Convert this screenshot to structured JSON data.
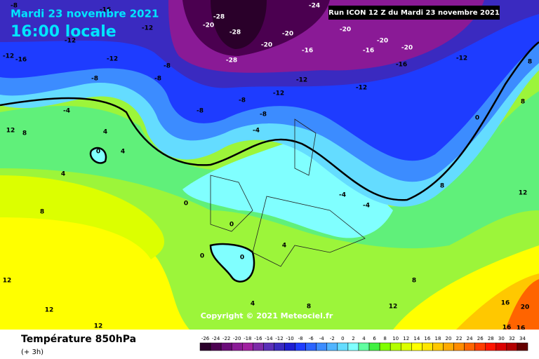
{
  "header": {
    "date": "Mardi 23 novembre 2021",
    "time": "16:00 locale",
    "run": "Run ICON 12 Z du Mardi 23 novembre 2021"
  },
  "map": {
    "copyright": "Copyright © 2021 Meteociel.fr",
    "contour_labels": [
      "-8",
      "-16",
      "-12",
      "-12",
      "-12",
      "-16",
      "-12",
      "-8",
      "-8",
      "-8",
      "-28",
      "-28",
      "-28",
      "-20",
      "-20",
      "-20",
      "-24",
      "-20",
      "-20",
      "-20",
      "-16",
      "-16",
      "-16",
      "-12",
      "-12",
      "-12",
      "-12",
      "-8",
      "-8",
      "-8",
      "-4",
      "-4",
      "12",
      "8",
      "4",
      "0",
      "4",
      "4",
      "8",
      "-4",
      "-4",
      "0",
      "8",
      "8",
      "8",
      "12",
      "0",
      "0",
      "0",
      "0",
      "4",
      "4",
      "8",
      "8",
      "12",
      "12",
      "12",
      "12",
      "16",
      "20",
      "16",
      "16"
    ]
  },
  "footer": {
    "title": "Température 850hPa",
    "lead": "(+ 3h)"
  },
  "colorbar": {
    "labels": [
      "-26",
      "-24",
      "-22",
      "-20",
      "-18",
      "-16",
      "-14",
      "-12",
      "-10",
      "-8",
      "-6",
      "-4",
      "-2",
      "0",
      "2",
      "4",
      "6",
      "8",
      "10",
      "12",
      "14",
      "16",
      "18",
      "20",
      "22",
      "24",
      "26",
      "28",
      "30",
      "32",
      "34"
    ],
    "colors": [
      "#2a002a",
      "#4b0050",
      "#6a0a78",
      "#8a1a96",
      "#a020a0",
      "#7d2aa8",
      "#5a2fb8",
      "#3a2ac0",
      "#1e1ed2",
      "#1e3cff",
      "#2a64ff",
      "#3c8cff",
      "#50b4ff",
      "#64dcff",
      "#80ffff",
      "#60ffa0",
      "#40f040",
      "#80ff00",
      "#b4ff00",
      "#dcff00",
      "#ffff00",
      "#ffe600",
      "#ffc800",
      "#ffaa00",
      "#ff8c00",
      "#ff6400",
      "#ff3c00",
      "#ff1400",
      "#dc0000",
      "#b40000",
      "#640000"
    ]
  }
}
